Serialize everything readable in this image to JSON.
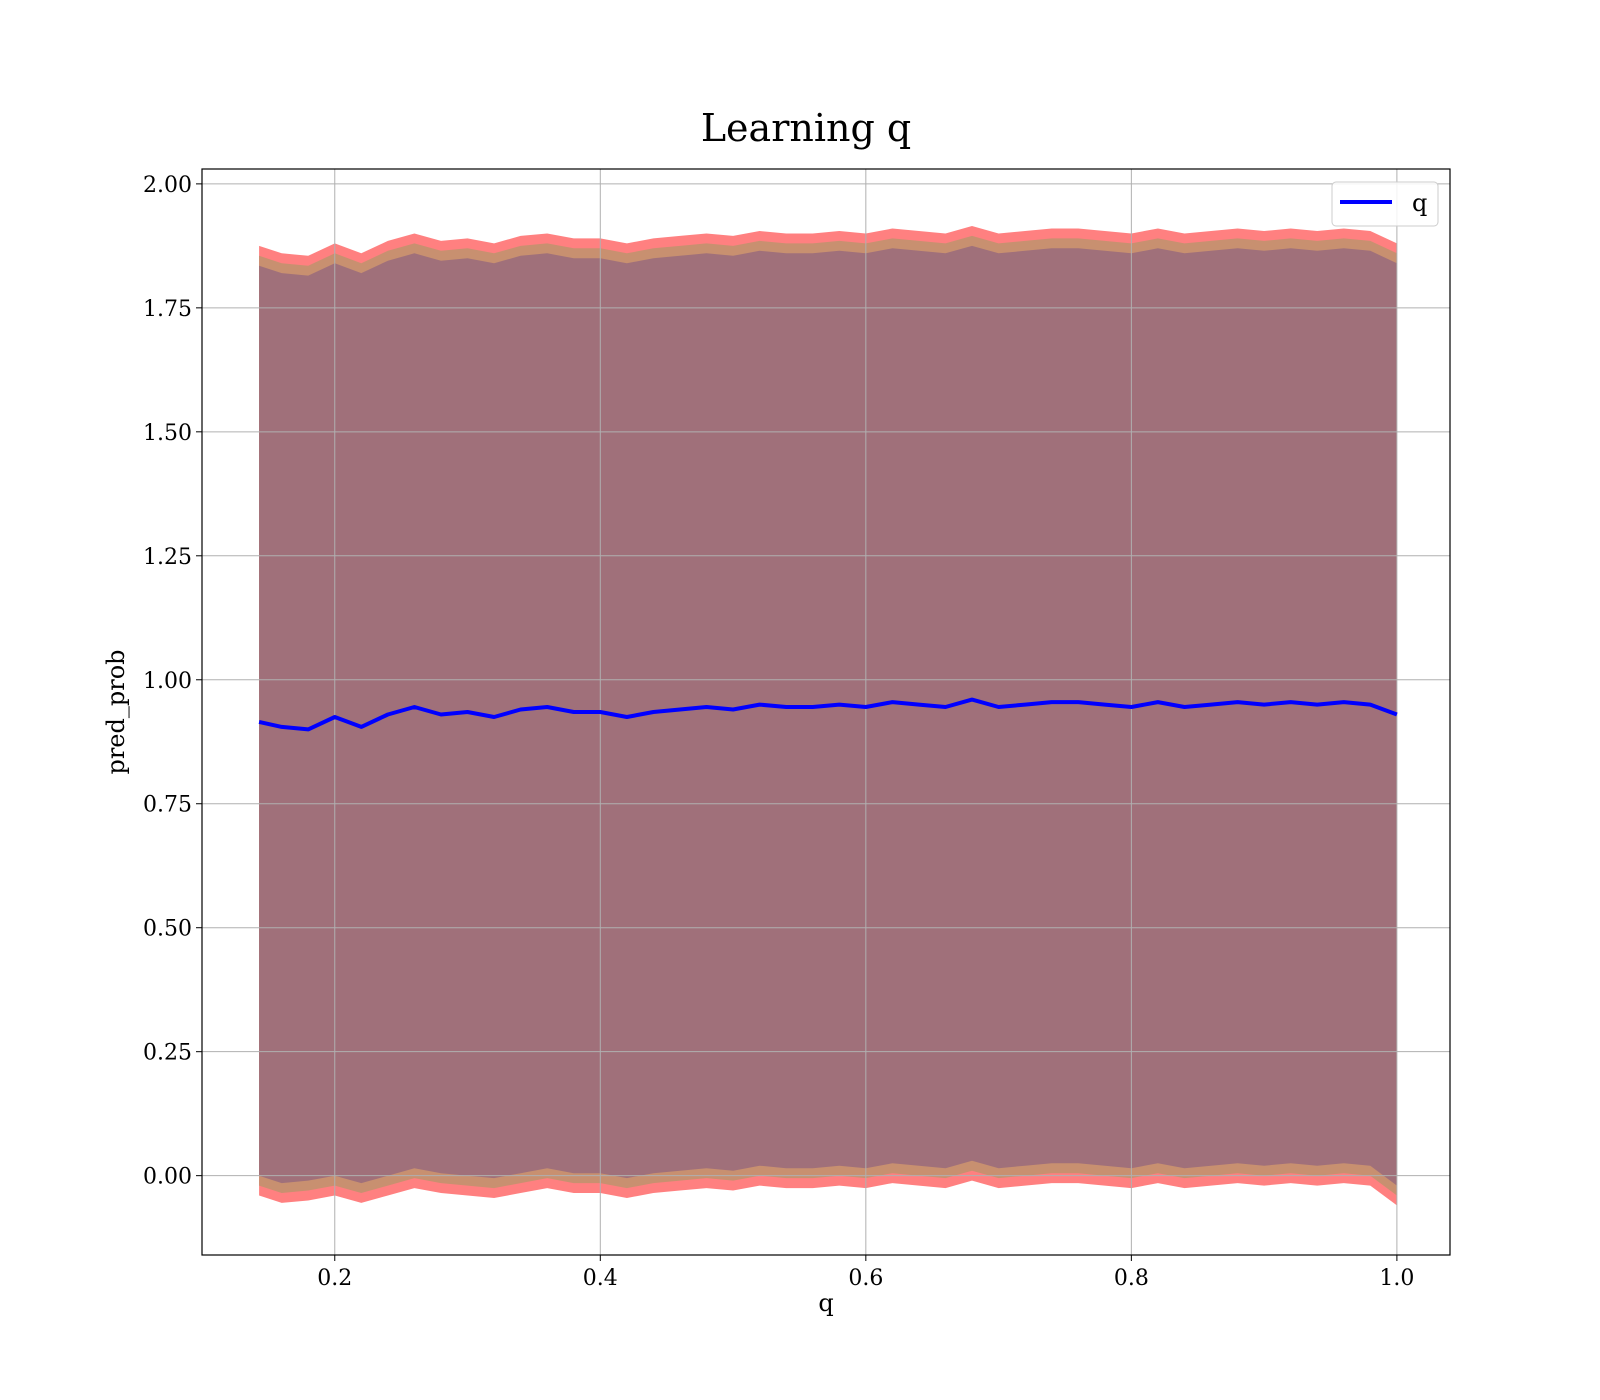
{
  "chart_data": {
    "type": "area",
    "title": "Learning q",
    "xlabel": "q",
    "ylabel": "pred_prob",
    "xlim": [
      0.1,
      1.04
    ],
    "ylim": [
      -0.16,
      2.03
    ],
    "xticks": [
      0.2,
      0.4,
      0.6,
      0.8,
      1.0
    ],
    "xtick_labels": [
      "0.2",
      "0.4",
      "0.6",
      "0.8",
      "1.0"
    ],
    "yticks": [
      0.0,
      0.25,
      0.5,
      0.75,
      1.0,
      1.25,
      1.5,
      1.75,
      2.0
    ],
    "ytick_labels": [
      "0.00",
      "0.25",
      "0.50",
      "0.75",
      "1.00",
      "1.25",
      "1.50",
      "1.75",
      "2.00"
    ],
    "grid": true,
    "legend_position": "top-right",
    "colors": {
      "mean_line": "#0000ff",
      "outer_band": "#ff8080",
      "middle_band": "#c89070",
      "inner_band": "#a0707a",
      "grid": "#b0b0b0"
    },
    "x": [
      0.143,
      0.16,
      0.18,
      0.2,
      0.22,
      0.24,
      0.26,
      0.28,
      0.3,
      0.32,
      0.34,
      0.36,
      0.38,
      0.4,
      0.42,
      0.44,
      0.46,
      0.48,
      0.5,
      0.52,
      0.54,
      0.56,
      0.58,
      0.6,
      0.62,
      0.64,
      0.66,
      0.68,
      0.7,
      0.72,
      0.74,
      0.76,
      0.78,
      0.8,
      0.82,
      0.84,
      0.86,
      0.88,
      0.9,
      0.92,
      0.94,
      0.96,
      0.98,
      1.0
    ],
    "series": [
      {
        "name": "q",
        "role": "line",
        "values": [
          0.915,
          0.905,
          0.9,
          0.925,
          0.905,
          0.93,
          0.945,
          0.93,
          0.935,
          0.925,
          0.94,
          0.945,
          0.935,
          0.935,
          0.925,
          0.935,
          0.94,
          0.945,
          0.94,
          0.95,
          0.945,
          0.945,
          0.95,
          0.945,
          0.955,
          0.95,
          0.945,
          0.96,
          0.945,
          0.95,
          0.955,
          0.955,
          0.95,
          0.945,
          0.955,
          0.945,
          0.95,
          0.955,
          0.95,
          0.955,
          0.95,
          0.955,
          0.95,
          0.93
        ]
      },
      {
        "role": "band",
        "lower": [
          -0.04,
          -0.055,
          -0.05,
          -0.04,
          -0.055,
          -0.04,
          -0.025,
          -0.035,
          -0.04,
          -0.045,
          -0.035,
          -0.025,
          -0.035,
          -0.035,
          -0.045,
          -0.035,
          -0.03,
          -0.025,
          -0.03,
          -0.02,
          -0.025,
          -0.025,
          -0.02,
          -0.025,
          -0.015,
          -0.02,
          -0.025,
          -0.01,
          -0.025,
          -0.02,
          -0.015,
          -0.015,
          -0.02,
          -0.025,
          -0.015,
          -0.025,
          -0.02,
          -0.015,
          -0.02,
          -0.015,
          -0.02,
          -0.015,
          -0.02,
          -0.06
        ],
        "upper": [
          1.875,
          1.86,
          1.855,
          1.88,
          1.86,
          1.885,
          1.9,
          1.885,
          1.89,
          1.88,
          1.895,
          1.9,
          1.89,
          1.89,
          1.88,
          1.89,
          1.895,
          1.9,
          1.895,
          1.905,
          1.9,
          1.9,
          1.905,
          1.9,
          1.91,
          1.905,
          1.9,
          1.915,
          1.9,
          1.905,
          1.91,
          1.91,
          1.905,
          1.9,
          1.91,
          1.9,
          1.905,
          1.91,
          1.905,
          1.91,
          1.905,
          1.91,
          1.905,
          1.88
        ]
      },
      {
        "role": "band",
        "lower": [
          -0.02,
          -0.035,
          -0.03,
          -0.02,
          -0.035,
          -0.02,
          -0.005,
          -0.015,
          -0.02,
          -0.025,
          -0.015,
          -0.005,
          -0.015,
          -0.015,
          -0.025,
          -0.015,
          -0.01,
          -0.005,
          -0.01,
          0.0,
          -0.005,
          -0.005,
          0.0,
          -0.005,
          0.005,
          0.0,
          -0.005,
          0.01,
          -0.005,
          0.0,
          0.005,
          0.005,
          0.0,
          -0.005,
          0.005,
          -0.005,
          0.0,
          0.005,
          0.0,
          0.005,
          0.0,
          0.005,
          0.0,
          -0.04
        ],
        "upper": [
          1.855,
          1.84,
          1.835,
          1.86,
          1.84,
          1.865,
          1.88,
          1.865,
          1.87,
          1.86,
          1.875,
          1.88,
          1.87,
          1.87,
          1.86,
          1.87,
          1.875,
          1.88,
          1.875,
          1.885,
          1.88,
          1.88,
          1.885,
          1.88,
          1.89,
          1.885,
          1.88,
          1.895,
          1.88,
          1.885,
          1.89,
          1.89,
          1.885,
          1.88,
          1.89,
          1.88,
          1.885,
          1.89,
          1.885,
          1.89,
          1.885,
          1.89,
          1.885,
          1.86
        ]
      },
      {
        "role": "band",
        "lower": [
          0.0,
          -0.015,
          -0.01,
          0.0,
          -0.015,
          0.0,
          0.015,
          0.005,
          0.0,
          -0.005,
          0.005,
          0.015,
          0.005,
          0.005,
          -0.005,
          0.005,
          0.01,
          0.015,
          0.01,
          0.02,
          0.015,
          0.015,
          0.02,
          0.015,
          0.025,
          0.02,
          0.015,
          0.03,
          0.015,
          0.02,
          0.025,
          0.025,
          0.02,
          0.015,
          0.025,
          0.015,
          0.02,
          0.025,
          0.02,
          0.025,
          0.02,
          0.025,
          0.02,
          -0.02
        ],
        "upper": [
          1.835,
          1.82,
          1.815,
          1.84,
          1.82,
          1.845,
          1.86,
          1.845,
          1.85,
          1.84,
          1.855,
          1.86,
          1.85,
          1.85,
          1.84,
          1.85,
          1.855,
          1.86,
          1.855,
          1.865,
          1.86,
          1.86,
          1.865,
          1.86,
          1.87,
          1.865,
          1.86,
          1.875,
          1.86,
          1.865,
          1.87,
          1.87,
          1.865,
          1.86,
          1.87,
          1.86,
          1.865,
          1.87,
          1.865,
          1.87,
          1.865,
          1.87,
          1.865,
          1.84
        ]
      }
    ]
  }
}
